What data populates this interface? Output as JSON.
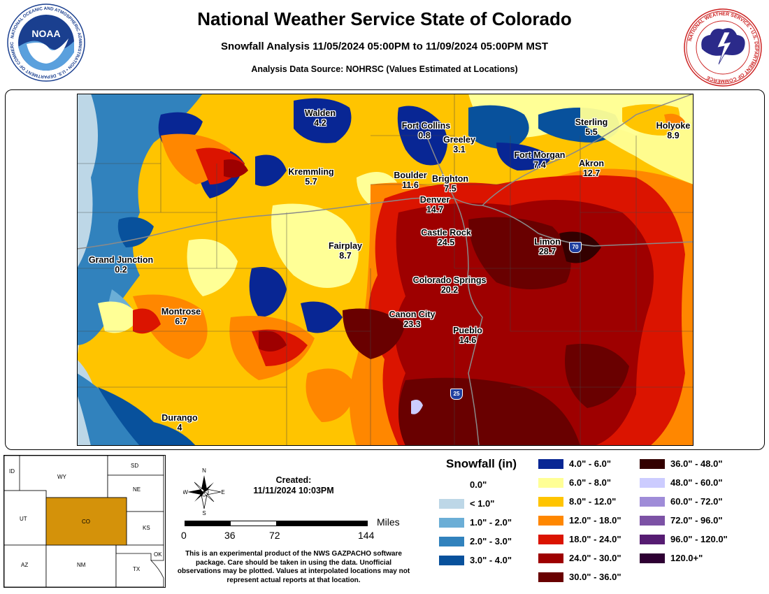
{
  "header": {
    "title": "National Weather Service State of Colorado",
    "subtitle": "Snowfall Analysis 11/05/2024 05:00PM to 11/09/2024 05:00PM MST",
    "source": "Analysis Data Source: NOHRSC (Values Estimated at Locations)"
  },
  "logos": {
    "noaa_text": "NOAA",
    "noaa_ring": "NATIONAL OCEANIC AND ATMOSPHERIC ADMINISTRATION • U.S. DEPARTMENT OF COMMERCE",
    "nws_ring": "NATIONAL WEATHER SERVICE • U.S. DEPARTMENT OF COMMERCE"
  },
  "cities": [
    {
      "name": "Walden",
      "value": "4.2"
    },
    {
      "name": "Fort Collins",
      "value": "0.8"
    },
    {
      "name": "Greeley",
      "value": "3.1"
    },
    {
      "name": "Sterling",
      "value": "5.5"
    },
    {
      "name": "Holyoke",
      "value": "8.9"
    },
    {
      "name": "Fort Morgan",
      "value": "7.4"
    },
    {
      "name": "Akron",
      "value": "12.7"
    },
    {
      "name": "Kremmling",
      "value": "5.7"
    },
    {
      "name": "Boulder",
      "value": "11.6"
    },
    {
      "name": "Brighton",
      "value": "7.5"
    },
    {
      "name": "Denver",
      "value": "14.7"
    },
    {
      "name": "Castle Rock",
      "value": "24.5"
    },
    {
      "name": "Limon",
      "value": "28.7"
    },
    {
      "name": "Fairplay",
      "value": "8.7"
    },
    {
      "name": "Grand Junction",
      "value": "0.2"
    },
    {
      "name": "Colorado Springs",
      "value": "20.2"
    },
    {
      "name": "Montrose",
      "value": "6.7"
    },
    {
      "name": "Canon City",
      "value": "23.3"
    },
    {
      "name": "Pueblo",
      "value": "14.6"
    },
    {
      "name": "Durango",
      "value": "4"
    }
  ],
  "highways": [
    {
      "name": "interstate-70-shield",
      "label": "70"
    },
    {
      "name": "interstate-25-shield",
      "label": "25"
    }
  ],
  "inset_map": {
    "states": [
      "WY",
      "SD",
      "NE",
      "UT",
      "CO",
      "KS",
      "AZ",
      "NM",
      "OK",
      "TX",
      "ID"
    ],
    "highlight_color": "#D4920A"
  },
  "compass": {
    "n": "N",
    "s": "S",
    "e": "E",
    "w": "W"
  },
  "created": {
    "label": "Created:",
    "timestamp": "11/11/2024 10:03PM"
  },
  "scale": {
    "unit": "Miles",
    "ticks": [
      "0",
      "36",
      "72",
      "144"
    ]
  },
  "disclaimer": "This is an experimental product of the NWS GAZPACHO software package. Care should be taken in using the data. Unofficial observations may be plotted. Values at interpolated locations may not represent actual reports at that location.",
  "legend": {
    "title": "Snowfall (in)",
    "items": [
      {
        "label": "0.0\"",
        "color": "#FFFFFF"
      },
      {
        "label": "< 1.0\"",
        "color": "#BDD7E7"
      },
      {
        "label": "1.0\" - 2.0\"",
        "color": "#6BAED6"
      },
      {
        "label": "2.0\" - 3.0\"",
        "color": "#3182BD"
      },
      {
        "label": "3.0\" - 4.0\"",
        "color": "#08519C"
      },
      {
        "label": "4.0\" - 6.0\"",
        "color": "#082694"
      },
      {
        "label": "6.0\" - 8.0\"",
        "color": "#FFFF96"
      },
      {
        "label": "8.0\" - 12.0\"",
        "color": "#FFC400"
      },
      {
        "label": "12.0\" - 18.0\"",
        "color": "#FF8700"
      },
      {
        "label": "18.0\" - 24.0\"",
        "color": "#DB1400"
      },
      {
        "label": "24.0\" - 30.0\"",
        "color": "#9E0000"
      },
      {
        "label": "30.0\" - 36.0\"",
        "color": "#690000"
      },
      {
        "label": "36.0\" - 48.0\"",
        "color": "#330000"
      },
      {
        "label": "48.0\" - 60.0\"",
        "color": "#CCCCFF"
      },
      {
        "label": "60.0\" - 72.0\"",
        "color": "#9F8CD8"
      },
      {
        "label": "72.0\" - 96.0\"",
        "color": "#7C52A5"
      },
      {
        "label": "96.0\" - 120.0\"",
        "color": "#561C72"
      },
      {
        "label": "120.0+\"",
        "color": "#2E0033"
      }
    ]
  }
}
